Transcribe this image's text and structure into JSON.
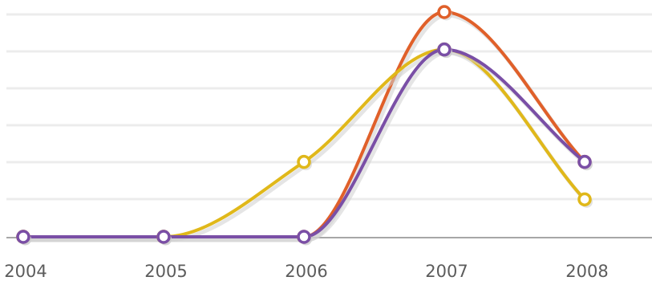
{
  "chart_data": {
    "type": "line",
    "title": "",
    "xlabel": "",
    "ylabel": "",
    "categories": [
      "2004",
      "2005",
      "2006",
      "2007",
      "2008"
    ],
    "ylim": [
      0,
      6
    ],
    "grid": true,
    "legend": "none",
    "series": [
      {
        "color": "#e0602a",
        "values": [
          0,
          0,
          0,
          6,
          2
        ]
      },
      {
        "color": "#e0b81a",
        "values": [
          0,
          0,
          2,
          5,
          1
        ]
      },
      {
        "color": "#7a4fa6",
        "values": [
          0,
          0,
          0,
          5,
          2
        ]
      }
    ]
  }
}
